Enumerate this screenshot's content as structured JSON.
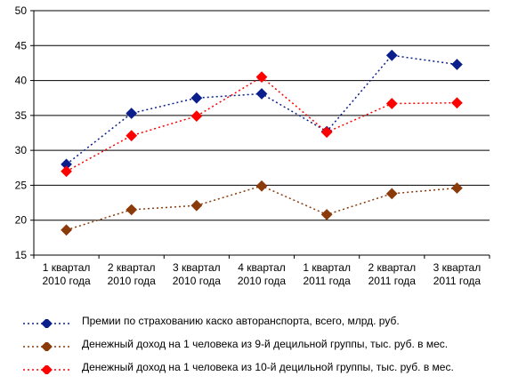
{
  "chart_data": {
    "type": "line",
    "title": "",
    "xlabel": "",
    "ylabel": "",
    "ylim": [
      15,
      50
    ],
    "yticks": [
      15,
      20,
      25,
      30,
      35,
      40,
      45,
      50
    ],
    "grid": true,
    "legend_position": "bottom",
    "categories": [
      [
        "1 квартал",
        "2010 года"
      ],
      [
        "2 квартал",
        "2010 года"
      ],
      [
        "3 квартал",
        "2010 года"
      ],
      [
        "4 квартал",
        "2010 года"
      ],
      [
        "1 квартал",
        "2011 года"
      ],
      [
        "2 квартал",
        "2011 года"
      ],
      [
        "3 квартал",
        "2011 года"
      ]
    ],
    "series": [
      {
        "name": "Премии по страхованию каско авторанспорта, всего, млрд. руб.",
        "color": "#0b1f8c",
        "values": [
          28.0,
          35.3,
          37.5,
          38.1,
          32.7,
          43.6,
          42.3
        ]
      },
      {
        "name": "Денежный доход на 1 человека из 9-й децильной группы, тыс. руб. в мес.",
        "color": "#8b3a0a",
        "values": [
          18.6,
          21.5,
          22.1,
          24.9,
          20.8,
          23.8,
          24.6
        ]
      },
      {
        "name": "Денежный доход на 1 человека из 10-й децильной группы, тыс. руб. в мес.",
        "color": "#ff0000",
        "values": [
          27.0,
          32.1,
          34.9,
          40.5,
          32.6,
          36.7,
          36.8
        ]
      }
    ]
  }
}
